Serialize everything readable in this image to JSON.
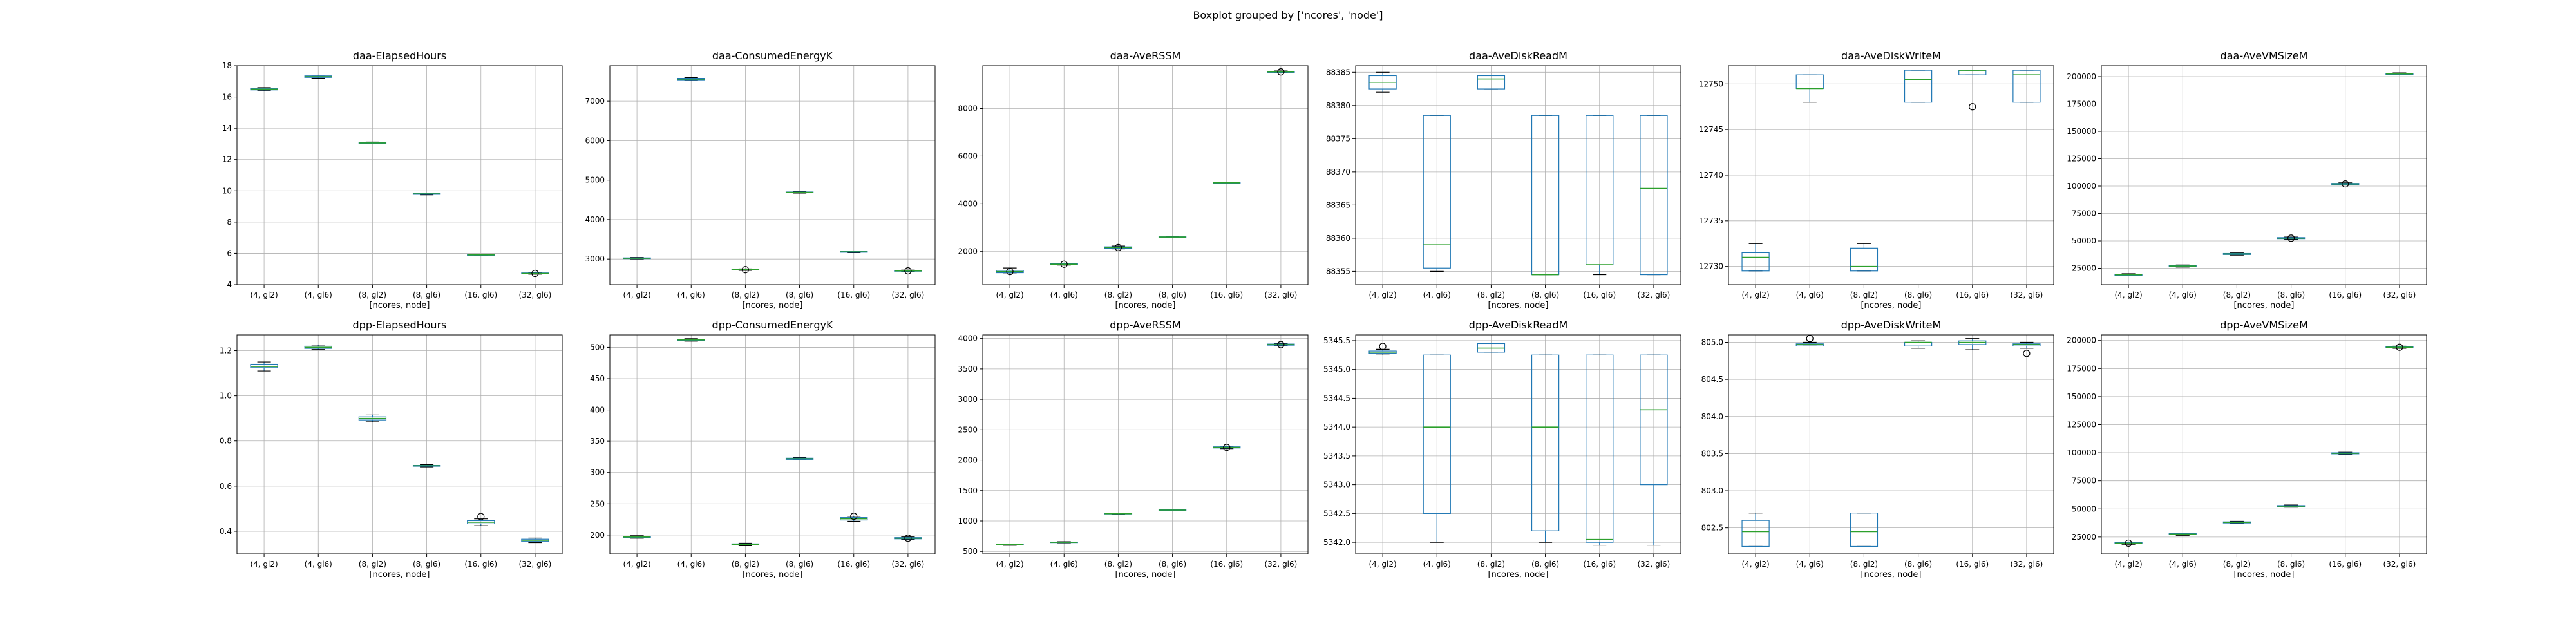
{
  "figure": {
    "title": "Boxplot grouped by ['ncores', 'node']"
  },
  "colors": {
    "box": "#1f77b4",
    "median": "#2ca02c",
    "grid": "#b0b0b0",
    "axes": "#000000"
  },
  "chart_data": [
    {
      "type": "box",
      "title": "daa-ElapsedHours",
      "xlabel": "[ncores, node]",
      "categories": [
        "(4, gl2)",
        "(4, gl6)",
        "(8, gl2)",
        "(8, gl6)",
        "(16, gl6)",
        "(32, gl6)"
      ],
      "ylim": [
        4,
        18
      ],
      "yticks": [
        4,
        6,
        8,
        10,
        12,
        14,
        16,
        18
      ],
      "boxes": [
        {
          "min": 16.4,
          "q1": 16.45,
          "median": 16.5,
          "q3": 16.55,
          "max": 16.6
        },
        {
          "min": 17.2,
          "q1": 17.25,
          "median": 17.3,
          "q3": 17.35,
          "max": 17.4
        },
        {
          "min": 13.0,
          "q1": 13.03,
          "median": 13.06,
          "q3": 13.09,
          "max": 13.12
        },
        {
          "min": 9.74,
          "q1": 9.77,
          "median": 9.8,
          "q3": 9.83,
          "max": 9.86
        },
        {
          "min": 5.86,
          "q1": 5.88,
          "median": 5.9,
          "q3": 5.92,
          "max": 5.94
        },
        {
          "min": 4.67,
          "q1": 4.69,
          "median": 4.72,
          "q3": 4.75,
          "max": 4.78
        }
      ],
      "outliers": [
        [
          5,
          4.72
        ]
      ]
    },
    {
      "type": "box",
      "title": "daa-ConsumedEnergyK",
      "xlabel": "[ncores, node]",
      "categories": [
        "(4, gl2)",
        "(4, gl6)",
        "(8, gl2)",
        "(8, gl6)",
        "(16, gl6)",
        "(32, gl6)"
      ],
      "ylim": [
        2350,
        7900
      ],
      "yticks": [
        3000,
        4000,
        5000,
        6000,
        7000
      ],
      "boxes": [
        {
          "min": 3000,
          "q1": 3010,
          "median": 3020,
          "q3": 3030,
          "max": 3040
        },
        {
          "min": 7520,
          "q1": 7540,
          "median": 7560,
          "q3": 7580,
          "max": 7600
        },
        {
          "min": 2710,
          "q1": 2720,
          "median": 2730,
          "q3": 2740,
          "max": 2750
        },
        {
          "min": 4670,
          "q1": 4680,
          "median": 4690,
          "q3": 4700,
          "max": 4710
        },
        {
          "min": 3160,
          "q1": 3170,
          "median": 3180,
          "q3": 3190,
          "max": 3200
        },
        {
          "min": 2680,
          "q1": 2690,
          "median": 2700,
          "q3": 2710,
          "max": 2720
        }
      ],
      "outliers": [
        [
          2,
          2730
        ],
        [
          5,
          2700
        ]
      ]
    },
    {
      "type": "box",
      "title": "daa-AveRSSM",
      "xlabel": "[ncores, node]",
      "categories": [
        "(4, gl2)",
        "(4, gl6)",
        "(8, gl2)",
        "(8, gl6)",
        "(16, gl6)",
        "(32, gl6)"
      ],
      "ylim": [
        600,
        9800
      ],
      "yticks": [
        2000,
        4000,
        6000,
        8000
      ],
      "boxes": [
        {
          "min": 1050,
          "q1": 1100,
          "median": 1150,
          "q3": 1200,
          "max": 1300
        },
        {
          "min": 1420,
          "q1": 1440,
          "median": 1460,
          "q3": 1480,
          "max": 1500
        },
        {
          "min": 2100,
          "q1": 2130,
          "median": 2160,
          "q3": 2190,
          "max": 2220
        },
        {
          "min": 2580,
          "q1": 2590,
          "median": 2600,
          "q3": 2610,
          "max": 2620
        },
        {
          "min": 4860,
          "q1": 4870,
          "median": 4880,
          "q3": 4890,
          "max": 4900
        },
        {
          "min": 9500,
          "q1": 9520,
          "median": 9540,
          "q3": 9560,
          "max": 9580
        }
      ],
      "outliers": [
        [
          0,
          1150
        ],
        [
          1,
          1460
        ],
        [
          2,
          2160
        ],
        [
          5,
          9540
        ]
      ]
    },
    {
      "type": "box",
      "title": "daa-AveDiskReadM",
      "xlabel": "[ncores, node]",
      "categories": [
        "(4, gl2)",
        "(4, gl6)",
        "(8, gl2)",
        "(8, gl6)",
        "(16, gl6)",
        "(32, gl6)"
      ],
      "ylim": [
        88353,
        88386
      ],
      "yticks": [
        88355,
        88360,
        88365,
        88370,
        88375,
        88380,
        88385
      ],
      "boxes": [
        {
          "min": 88382,
          "q1": 88382.5,
          "median": 88383.5,
          "q3": 88384.5,
          "max": 88385
        },
        {
          "min": 88355,
          "q1": 88355.5,
          "median": 88359,
          "q3": 88378.5,
          "max": 88378.5
        },
        {
          "min": 88382.5,
          "q1": 88382.5,
          "median": 88384,
          "q3": 88384.5,
          "max": 88384.5
        },
        {
          "min": 88354.5,
          "q1": 88354.5,
          "median": 88354.5,
          "q3": 88378.5,
          "max": 88378.5
        },
        {
          "min": 88354.5,
          "q1": 88356,
          "median": 88356,
          "q3": 88378.5,
          "max": 88378.5
        },
        {
          "min": 88354.5,
          "q1": 88354.5,
          "median": 88367.5,
          "q3": 88378.5,
          "max": 88378.5
        }
      ],
      "outliers": []
    },
    {
      "type": "box",
      "title": "daa-AveDiskWriteM",
      "xlabel": "[ncores, node]",
      "categories": [
        "(4, gl2)",
        "(4, gl6)",
        "(8, gl2)",
        "(8, gl6)",
        "(16, gl6)",
        "(32, gl6)"
      ],
      "ylim": [
        12728,
        12752
      ],
      "yticks": [
        12730,
        12735,
        12740,
        12745,
        12750
      ],
      "boxes": [
        {
          "min": 12729.5,
          "q1": 12729.5,
          "median": 12731,
          "q3": 12731.5,
          "max": 12732.5
        },
        {
          "min": 12748,
          "q1": 12749.5,
          "median": 12749.5,
          "q3": 12751,
          "max": 12751
        },
        {
          "min": 12729.5,
          "q1": 12729.5,
          "median": 12730,
          "q3": 12732,
          "max": 12732.5
        },
        {
          "min": 12748,
          "q1": 12748,
          "median": 12750.5,
          "q3": 12751.5,
          "max": 12751.5
        },
        {
          "min": 12751,
          "q1": 12751,
          "median": 12751.5,
          "q3": 12751.5,
          "max": 12751.5
        },
        {
          "min": 12748,
          "q1": 12748,
          "median": 12751,
          "q3": 12751.5,
          "max": 12751.5
        }
      ],
      "outliers": [
        [
          4,
          12747.5
        ]
      ]
    },
    {
      "type": "box",
      "title": "daa-AveVMSizeM",
      "xlabel": "[ncores, node]",
      "categories": [
        "(4, gl2)",
        "(4, gl6)",
        "(8, gl2)",
        "(8, gl6)",
        "(16, gl6)",
        "(32, gl6)"
      ],
      "ylim": [
        10000,
        210000
      ],
      "yticks": [
        25000,
        50000,
        75000,
        100000,
        125000,
        150000,
        175000,
        200000
      ],
      "boxes": [
        {
          "min": 18000,
          "q1": 18500,
          "median": 19000,
          "q3": 19500,
          "max": 20000
        },
        {
          "min": 26000,
          "q1": 26500,
          "median": 27000,
          "q3": 27500,
          "max": 28000
        },
        {
          "min": 37000,
          "q1": 37500,
          "median": 38000,
          "q3": 38500,
          "max": 39000
        },
        {
          "min": 51500,
          "q1": 52000,
          "median": 52500,
          "q3": 53000,
          "max": 53500
        },
        {
          "min": 101000,
          "q1": 101500,
          "median": 102000,
          "q3": 102500,
          "max": 103000
        },
        {
          "min": 201500,
          "q1": 202000,
          "median": 202500,
          "q3": 203000,
          "max": 203500
        }
      ],
      "outliers": [
        [
          3,
          52500
        ],
        [
          4,
          102000
        ]
      ]
    },
    {
      "type": "box",
      "title": "dpp-ElapsedHours",
      "xlabel": "[ncores, node]",
      "categories": [
        "(4, gl2)",
        "(4, gl6)",
        "(8, gl2)",
        "(8, gl6)",
        "(16, gl6)",
        "(32, gl6)"
      ],
      "ylim": [
        0.3,
        1.27
      ],
      "yticks": [
        0.4,
        0.6,
        0.8,
        1.0,
        1.2
      ],
      "boxes": [
        {
          "min": 1.11,
          "q1": 1.125,
          "median": 1.13,
          "q3": 1.14,
          "max": 1.15
        },
        {
          "min": 1.205,
          "q1": 1.21,
          "median": 1.215,
          "q3": 1.22,
          "max": 1.225
        },
        {
          "min": 0.885,
          "q1": 0.893,
          "median": 0.9,
          "q3": 0.907,
          "max": 0.915
        },
        {
          "min": 0.685,
          "q1": 0.688,
          "median": 0.69,
          "q3": 0.692,
          "max": 0.695
        },
        {
          "min": 0.425,
          "q1": 0.433,
          "median": 0.44,
          "q3": 0.447,
          "max": 0.455
        },
        {
          "min": 0.35,
          "q1": 0.355,
          "median": 0.36,
          "q3": 0.365,
          "max": 0.37
        }
      ],
      "outliers": [
        [
          4,
          0.465
        ]
      ]
    },
    {
      "type": "box",
      "title": "dpp-ConsumedEnergyK",
      "xlabel": "[ncores, node]",
      "categories": [
        "(4, gl2)",
        "(4, gl6)",
        "(8, gl2)",
        "(8, gl6)",
        "(16, gl6)",
        "(32, gl6)"
      ],
      "ylim": [
        170,
        520
      ],
      "yticks": [
        200,
        250,
        300,
        350,
        400,
        450,
        500
      ],
      "boxes": [
        {
          "min": 195,
          "q1": 196,
          "median": 197,
          "q3": 198,
          "max": 199
        },
        {
          "min": 510,
          "q1": 511,
          "median": 512,
          "q3": 513,
          "max": 514
        },
        {
          "min": 183,
          "q1": 184,
          "median": 185,
          "q3": 186,
          "max": 187
        },
        {
          "min": 320,
          "q1": 321,
          "median": 322,
          "q3": 323,
          "max": 324
        },
        {
          "min": 222,
          "q1": 224,
          "median": 226,
          "q3": 228,
          "max": 230
        },
        {
          "min": 193,
          "q1": 194,
          "median": 195,
          "q3": 196,
          "max": 197
        }
      ],
      "outliers": [
        [
          4,
          230
        ],
        [
          5,
          195
        ]
      ]
    },
    {
      "type": "box",
      "title": "dpp-AveRSSM",
      "xlabel": "[ncores, node]",
      "categories": [
        "(4, gl2)",
        "(4, gl6)",
        "(8, gl2)",
        "(8, gl6)",
        "(16, gl6)",
        "(32, gl6)"
      ],
      "ylim": [
        460,
        4060
      ],
      "yticks": [
        500,
        1000,
        1500,
        2000,
        2500,
        3000,
        3500,
        4000
      ],
      "boxes": [
        {
          "min": 600,
          "q1": 605,
          "median": 610,
          "q3": 615,
          "max": 620
        },
        {
          "min": 640,
          "q1": 645,
          "median": 650,
          "q3": 655,
          "max": 660
        },
        {
          "min": 1110,
          "q1": 1115,
          "median": 1120,
          "q3": 1125,
          "max": 1130
        },
        {
          "min": 1170,
          "q1": 1175,
          "median": 1180,
          "q3": 1185,
          "max": 1190
        },
        {
          "min": 2190,
          "q1": 2200,
          "median": 2210,
          "q3": 2220,
          "max": 2230
        },
        {
          "min": 3880,
          "q1": 3890,
          "median": 3900,
          "q3": 3910,
          "max": 3920
        }
      ],
      "outliers": [
        [
          4,
          2210
        ],
        [
          5,
          3900
        ]
      ]
    },
    {
      "type": "box",
      "title": "dpp-AveDiskReadM",
      "xlabel": "[ncores, node]",
      "categories": [
        "(4, gl2)",
        "(4, gl6)",
        "(8, gl2)",
        "(8, gl6)",
        "(16, gl6)",
        "(32, gl6)"
      ],
      "ylim": [
        5341.8,
        5345.6
      ],
      "yticks": [
        5342.0,
        5342.5,
        5343.0,
        5343.5,
        5344.0,
        5344.5,
        5345.0,
        5345.5
      ],
      "boxes": [
        {
          "min": 5345.25,
          "q1": 5345.28,
          "median": 5345.3,
          "q3": 5345.32,
          "max": 5345.35
        },
        {
          "min": 5342.0,
          "q1": 5342.5,
          "median": 5344.0,
          "q3": 5345.25,
          "max": 5345.25
        },
        {
          "min": 5345.3,
          "q1": 5345.3,
          "median": 5345.37,
          "q3": 5345.45,
          "max": 5345.45
        },
        {
          "min": 5342.0,
          "q1": 5342.2,
          "median": 5344.0,
          "q3": 5345.25,
          "max": 5345.25
        },
        {
          "min": 5341.95,
          "q1": 5342.0,
          "median": 5342.05,
          "q3": 5345.25,
          "max": 5345.25
        },
        {
          "min": 5341.95,
          "q1": 5343.0,
          "median": 5344.3,
          "q3": 5345.25,
          "max": 5345.25
        }
      ],
      "outliers": [
        [
          0,
          5345.4
        ]
      ]
    },
    {
      "type": "box",
      "title": "dpp-AveDiskWriteM",
      "xlabel": "[ncores, node]",
      "categories": [
        "(4, gl2)",
        "(4, gl6)",
        "(8, gl2)",
        "(8, gl6)",
        "(16, gl6)",
        "(32, gl6)"
      ],
      "ylim": [
        802.15,
        805.1
      ],
      "yticks": [
        802.5,
        803.0,
        803.5,
        804.0,
        804.5,
        805.0
      ],
      "boxes": [
        {
          "min": 802.25,
          "q1": 802.25,
          "median": 802.45,
          "q3": 802.6,
          "max": 802.7
        },
        {
          "min": 804.95,
          "q1": 804.95,
          "median": 804.97,
          "q3": 804.98,
          "max": 805.0
        },
        {
          "min": 802.25,
          "q1": 802.25,
          "median": 802.45,
          "q3": 802.7,
          "max": 802.7
        },
        {
          "min": 804.92,
          "q1": 804.95,
          "median": 805.0,
          "q3": 805.0,
          "max": 805.02
        },
        {
          "min": 804.9,
          "q1": 804.97,
          "median": 805.0,
          "q3": 805.02,
          "max": 805.05
        },
        {
          "min": 804.92,
          "q1": 804.95,
          "median": 804.97,
          "q3": 804.98,
          "max": 805.0
        }
      ],
      "outliers": [
        [
          1,
          805.05
        ],
        [
          5,
          804.85
        ]
      ]
    },
    {
      "type": "box",
      "title": "dpp-AveVMSizeM",
      "xlabel": "[ncores, node]",
      "categories": [
        "(4, gl2)",
        "(4, gl6)",
        "(8, gl2)",
        "(8, gl6)",
        "(16, gl6)",
        "(32, gl6)"
      ],
      "ylim": [
        10000,
        205000
      ],
      "yticks": [
        25000,
        50000,
        75000,
        100000,
        125000,
        150000,
        175000,
        200000
      ],
      "boxes": [
        {
          "min": 18500,
          "q1": 19000,
          "median": 19500,
          "q3": 20000,
          "max": 20500
        },
        {
          "min": 26500,
          "q1": 27000,
          "median": 27500,
          "q3": 28000,
          "max": 28500
        },
        {
          "min": 37000,
          "q1": 37500,
          "median": 38000,
          "q3": 38500,
          "max": 39000
        },
        {
          "min": 51500,
          "q1": 52000,
          "median": 52500,
          "q3": 53000,
          "max": 53500
        },
        {
          "min": 98500,
          "q1": 99000,
          "median": 99500,
          "q3": 100000,
          "max": 100500
        },
        {
          "min": 193000,
          "q1": 193500,
          "median": 194000,
          "q3": 194500,
          "max": 195000
        }
      ],
      "outliers": [
        [
          0,
          19500
        ],
        [
          5,
          194000
        ]
      ]
    }
  ]
}
